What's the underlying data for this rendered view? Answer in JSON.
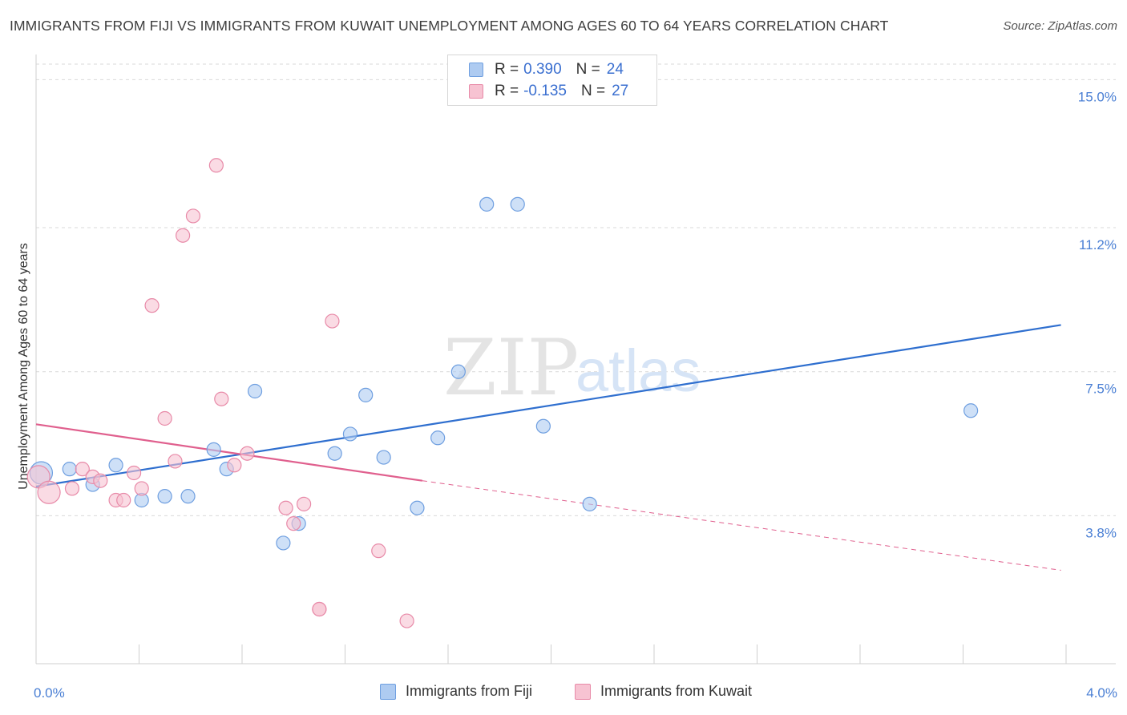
{
  "title": "IMMIGRANTS FROM FIJI VS IMMIGRANTS FROM KUWAIT UNEMPLOYMENT AMONG AGES 60 TO 64 YEARS CORRELATION CHART",
  "source": "Source: ZipAtlas.com",
  "watermark": {
    "zip": "ZIP",
    "atlas": "atlas"
  },
  "legend": {
    "fiji": {
      "r_label": "R =",
      "r_value": "0.390",
      "n_label": "N =",
      "n_value": "24"
    },
    "kuwait": {
      "r_label": "R =",
      "r_value": "-0.135",
      "n_label": "N =",
      "n_value": "27"
    }
  },
  "bottom_legend": {
    "fiji": "Immigrants from Fiji",
    "kuwait": "Immigrants from Kuwait"
  },
  "colors": {
    "fiji_fill": "#aecbf1",
    "fiji_stroke": "#6f9fe0",
    "fiji_line": "#2f6fcf",
    "kuwait_fill": "#f7c3d2",
    "kuwait_stroke": "#e88aa8",
    "kuwait_line": "#e0608e",
    "tick_text": "#4a7fd4",
    "grid": "#d9d9d9"
  },
  "chart_data": {
    "type": "scatter",
    "title": "IMMIGRANTS FROM FIJI VS IMMIGRANTS FROM KUWAIT UNEMPLOYMENT AMONG AGES 60 TO 64 YEARS CORRELATION CHART",
    "xlabel": "",
    "ylabel": "Unemployment Among Ages 60 to 64 years",
    "xlim": [
      0,
      4.0
    ],
    "ylim": [
      0,
      15.4
    ],
    "x_tick_labels": [
      "0.0%",
      "4.0%"
    ],
    "y_ticks": [
      3.8,
      7.5,
      11.2,
      15.0
    ],
    "y_tick_labels": [
      "3.8%",
      "7.5%",
      "11.2%",
      "15.0%"
    ],
    "grid": true,
    "series": [
      {
        "name": "Immigrants from Fiji",
        "points": [
          {
            "x": 0.02,
            "y": 4.9,
            "big": true
          },
          {
            "x": 0.13,
            "y": 5.0
          },
          {
            "x": 0.22,
            "y": 4.6
          },
          {
            "x": 0.31,
            "y": 5.1
          },
          {
            "x": 0.41,
            "y": 4.2
          },
          {
            "x": 0.5,
            "y": 4.3
          },
          {
            "x": 0.59,
            "y": 4.3
          },
          {
            "x": 0.69,
            "y": 5.5
          },
          {
            "x": 0.74,
            "y": 5.0
          },
          {
            "x": 0.85,
            "y": 7.0
          },
          {
            "x": 0.96,
            "y": 3.1
          },
          {
            "x": 1.02,
            "y": 3.6
          },
          {
            "x": 1.16,
            "y": 5.4
          },
          {
            "x": 1.22,
            "y": 5.9
          },
          {
            "x": 1.28,
            "y": 6.9
          },
          {
            "x": 1.35,
            "y": 5.3
          },
          {
            "x": 1.48,
            "y": 4.0
          },
          {
            "x": 1.56,
            "y": 5.8
          },
          {
            "x": 1.64,
            "y": 7.5
          },
          {
            "x": 1.75,
            "y": 11.8
          },
          {
            "x": 1.87,
            "y": 11.8
          },
          {
            "x": 1.97,
            "y": 6.1
          },
          {
            "x": 2.15,
            "y": 4.1
          },
          {
            "x": 3.63,
            "y": 6.5
          }
        ],
        "trend": {
          "x0": 0.0,
          "y0": 4.55,
          "x1": 3.98,
          "y1": 8.7
        }
      },
      {
        "name": "Immigrants from Kuwait",
        "points": [
          {
            "x": 0.01,
            "y": 4.8,
            "big": true
          },
          {
            "x": 0.05,
            "y": 4.4,
            "big": true
          },
          {
            "x": 0.14,
            "y": 4.5
          },
          {
            "x": 0.18,
            "y": 5.0
          },
          {
            "x": 0.22,
            "y": 4.8
          },
          {
            "x": 0.25,
            "y": 4.7
          },
          {
            "x": 0.31,
            "y": 4.2
          },
          {
            "x": 0.34,
            "y": 4.2
          },
          {
            "x": 0.38,
            "y": 4.9
          },
          {
            "x": 0.41,
            "y": 4.5
          },
          {
            "x": 0.45,
            "y": 9.2
          },
          {
            "x": 0.5,
            "y": 6.3
          },
          {
            "x": 0.54,
            "y": 5.2
          },
          {
            "x": 0.57,
            "y": 11.0
          },
          {
            "x": 0.61,
            "y": 11.5
          },
          {
            "x": 0.7,
            "y": 12.8
          },
          {
            "x": 0.72,
            "y": 6.8
          },
          {
            "x": 0.77,
            "y": 5.1
          },
          {
            "x": 0.82,
            "y": 5.4
          },
          {
            "x": 0.97,
            "y": 4.0
          },
          {
            "x": 1.0,
            "y": 3.6
          },
          {
            "x": 1.04,
            "y": 4.1
          },
          {
            "x": 1.1,
            "y": 1.4
          },
          {
            "x": 1.15,
            "y": 8.8
          },
          {
            "x": 1.33,
            "y": 2.9
          },
          {
            "x": 1.44,
            "y": 1.1
          },
          {
            "x": 1.1,
            "y": 1.4
          }
        ],
        "trend": {
          "x0": 0.0,
          "y0": 6.15,
          "x1": 1.5,
          "y1": 4.7
        },
        "trend_dashed": {
          "x0": 1.5,
          "y0": 4.7,
          "x1": 3.98,
          "y1": 2.4
        }
      }
    ]
  }
}
